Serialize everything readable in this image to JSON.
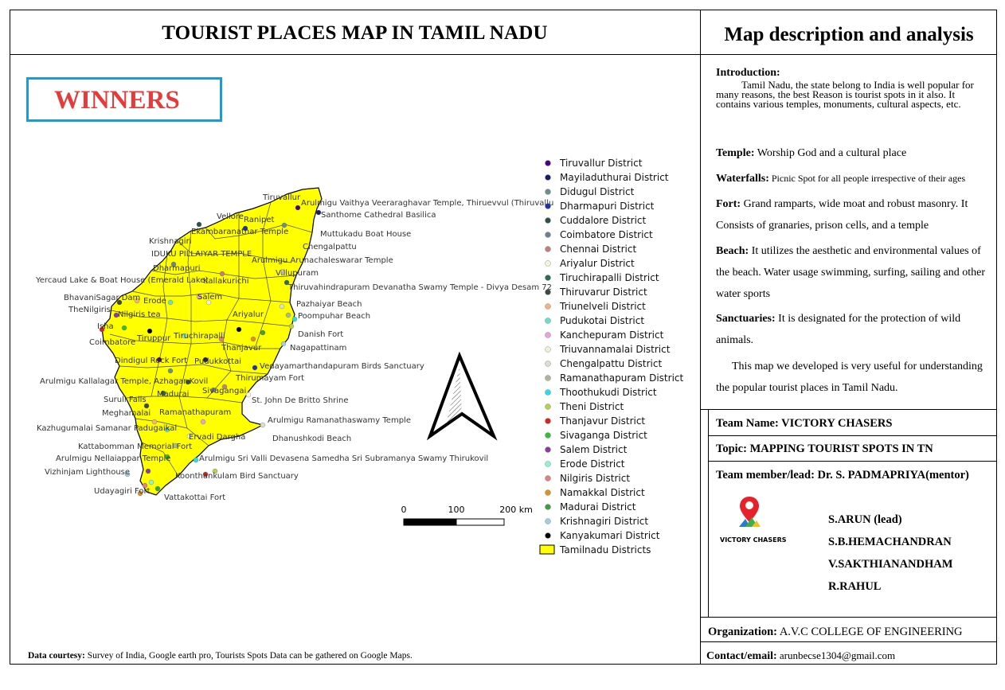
{
  "title": "TOURIST PLACES MAP IN TAMIL NADU",
  "panel_title": "Map description and analysis",
  "badge": "WINNERS",
  "courtesy": {
    "label": "Data courtesy:",
    "text": " Survey of India, Google earth pro, Tourists Spots Data can be gathered on Google Maps."
  },
  "intro": {
    "heading": "Introduction:",
    "text": "Tamil Nadu, the state belong to India is well popular for many reasons, the best Reason is tourist spots in it also. It contains various temples, monuments, cultural aspects, etc."
  },
  "descriptions": [
    {
      "term": "Temple:",
      "text": " Worship God and a cultural place"
    },
    {
      "term": "Waterfalls:",
      "text": " Picnic Spot for all people irrespective of their ages"
    },
    {
      "term": "Fort:",
      "text": " Grand ramparts, wide moat and robust masonry. It Consists of  granaries, prison cells, and a temple"
    },
    {
      "term": "Beach:",
      "text": " It utilizes the aesthetic and environmental values of the beach. Water usage swimming, surfing, sailing and other water sports"
    },
    {
      "term": "Sanctuaries:",
      "text": " It is designated for the protection of wild animals."
    }
  ],
  "closing": "This map we developed is very useful for understanding the popular tourist places in Tamil Nadu.",
  "team": {
    "name_row": "Team Name: VICTORY CHASERS",
    "topic_row": "Topic: MAPPING TOURIST SPOTS IN TN",
    "lead_row": "Team member/lead: Dr. S. PADMAPRIYA(mentor)",
    "logo_text": "VICTORY CHASERS",
    "members": [
      "S.ARUN (lead)",
      "S.B.HEMACHANDRAN",
      "V.SAKTHIANANDHAM",
      "R.RAHUL"
    ]
  },
  "organization": {
    "label": "Organization:",
    "value": " A.V.C COLLEGE OF ENGINEERING"
  },
  "contact": {
    "label": "Contact/email:",
    "value": " arunbecse1304@gmail.com"
  },
  "scale": {
    "ticks": [
      "0",
      "100",
      "200 km"
    ]
  },
  "legend": [
    {
      "name": "Tiruvallur District",
      "color": "#4b0082"
    },
    {
      "name": "Mayiladuthurai District",
      "color": "#1a1a6e"
    },
    {
      "name": "Didugul District",
      "color": "#6b8e8e"
    },
    {
      "name": "Dharmapuri District",
      "color": "#1f2fb0"
    },
    {
      "name": "Cuddalore District",
      "color": "#2f4f4f"
    },
    {
      "name": "Coimbatore District",
      "color": "#708090"
    },
    {
      "name": "Chennai District",
      "color": "#c08080"
    },
    {
      "name": "Ariyalur District",
      "color": "#f5f5dc"
    },
    {
      "name": "Tiruchirapalli District",
      "color": "#2e6b5e"
    },
    {
      "name": "Thiruvarur District",
      "color": "#3a4a40"
    },
    {
      "name": "Triunelveli District",
      "color": "#f4b183"
    },
    {
      "name": "Pudukotai District",
      "color": "#66e0c8"
    },
    {
      "name": "Kanchepuram District",
      "color": "#e8a0e0"
    },
    {
      "name": "Triuvannamalai District",
      "color": "#f0f0d8"
    },
    {
      "name": "Chengalpattu District",
      "color": "#d8e0d0"
    },
    {
      "name": "Ramanathapuram District",
      "color": "#a8b898"
    },
    {
      "name": "Thoothukudi District",
      "color": "#20e0e8"
    },
    {
      "name": "Theni District",
      "color": "#b8d050"
    },
    {
      "name": "Thanjavur District",
      "color": "#e02020"
    },
    {
      "name": "Sivaganga District",
      "color": "#30c030"
    },
    {
      "name": "Salem District",
      "color": "#8a3aa0"
    },
    {
      "name": "Erode District",
      "color": "#90f0d8"
    },
    {
      "name": "Nilgiris District",
      "color": "#e08080"
    },
    {
      "name": "Namakkal District",
      "color": "#e09020"
    },
    {
      "name": "Madurai District",
      "color": "#40a040"
    },
    {
      "name": "Krishnagiri District",
      "color": "#a0d0e0"
    },
    {
      "name": "Kanyakumari District",
      "color": "#000000"
    },
    {
      "name": "Tamilnadu Districts",
      "color": "#ffff00"
    }
  ],
  "places": [
    "Tiruvallur",
    "Arulmigu Vaithya Veeraraghavar Temple, Thiruevvul (Thiruvallu",
    "Santhome Cathedral Basilica",
    "Vellore",
    "Ranipet",
    "Muttukadu Boat House",
    "Ekambaranathar Temple",
    "Krishnagiri",
    "Chengalpattu",
    "IDUKU PILLAIYAR TEMPLE",
    "Arulmigu Arunachaleswarar Temple",
    "Dharmapuri",
    "Villupuram",
    "Yercaud Lake & Boat House (Emerald Lake)",
    "Kallakurichi",
    "Thiruvahindrapuram Devanatha Swamy Temple - Divya Desam 72",
    "BhavaniSagar Dam",
    "Erode",
    "Salem",
    "Pazhaiyar Beach",
    "TheNilgiris",
    "Nilgiris tea",
    "Ariyalur",
    "Poompuhar Beach",
    "Isha",
    "Tiruchirapalli",
    "Danish Fort",
    "Coimbatore",
    "Tiruppur",
    "Thanjavur",
    "Nagapattinam",
    "Dindigul Rock Fort",
    "Pudukkottai",
    "Vedayamarthandapuram Birds Sanctuary",
    "Arulmigu Kallalagar Temple, Azhagar Kovil",
    "Thirumayam Fort",
    "Sivagangai",
    "Madurai",
    "Suruli Falls",
    "St. John De Britto Shrine",
    "Meghamalai",
    "Ramanathapuram",
    "Arulmigu Ramanathaswamy Temple",
    "Kazhugumalai Samanar Padugaikal",
    "Ervadi Dargha",
    "Dhanushkodi Beach",
    "Kattabomman Memorial Fort",
    "Arulmigu Nellaiappar Temple",
    "Arulmigu Sri Valli Devasena Samedha Sri Subramanya Swamy Thirukovil",
    "Vizhinjam Lighthouse",
    "Koonthankulam Bird Sanctuary",
    "Udayagiri Fort",
    "Vattakottai Fort"
  ]
}
